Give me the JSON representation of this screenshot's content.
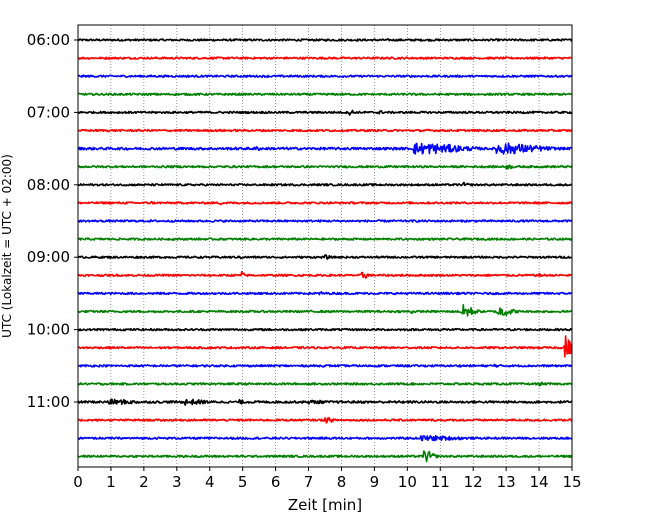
{
  "chart_data": {
    "type": "line",
    "subtype": "helicorder",
    "xlabel": "Zeit  [min]",
    "ylabel": "UTC (Lokalzeit = UTC + 02:00)",
    "xlim": [
      0,
      15
    ],
    "xticks": [
      "0",
      "1",
      "2",
      "3",
      "4",
      "5",
      "6",
      "7",
      "8",
      "9",
      "10",
      "11",
      "12",
      "13",
      "14",
      "15"
    ],
    "yticks": [
      "06:00",
      "07:00",
      "08:00",
      "09:00",
      "10:00",
      "11:00"
    ],
    "grid": "vertical-dotted",
    "trace_colors": [
      "#000000",
      "#ff0000",
      "#0000ff",
      "#008000"
    ],
    "traces": [
      {
        "start": "06:00",
        "color": "#000000",
        "amplitude": 0.12,
        "events": []
      },
      {
        "start": "06:15",
        "color": "#ff0000",
        "amplitude": 0.12,
        "events": []
      },
      {
        "start": "06:30",
        "color": "#0000ff",
        "amplitude": 0.12,
        "events": []
      },
      {
        "start": "06:45",
        "color": "#008000",
        "amplitude": 0.12,
        "events": []
      },
      {
        "start": "07:00",
        "color": "#000000",
        "amplitude": 0.12,
        "events": [
          {
            "t": 8.25,
            "amp": 0.5,
            "dur": 0.15
          },
          {
            "t": 9.15,
            "amp": 0.35,
            "dur": 0.1
          }
        ]
      },
      {
        "start": "07:15",
        "color": "#ff0000",
        "amplitude": 0.12,
        "events": []
      },
      {
        "start": "07:30",
        "color": "#0000ff",
        "amplitude": 0.15,
        "events": [
          {
            "t": 10.2,
            "amp": 0.75,
            "dur": 1.8
          },
          {
            "t": 12.7,
            "amp": 0.75,
            "dur": 1.6
          },
          {
            "t": 5.4,
            "amp": 0.3,
            "dur": 0.2
          }
        ]
      },
      {
        "start": "07:45",
        "color": "#008000",
        "amplitude": 0.12,
        "events": [
          {
            "t": 13.0,
            "amp": 0.3,
            "dur": 0.3
          }
        ]
      },
      {
        "start": "08:00",
        "color": "#000000",
        "amplitude": 0.12,
        "events": [
          {
            "t": 11.7,
            "amp": 0.3,
            "dur": 0.2
          }
        ]
      },
      {
        "start": "08:15",
        "color": "#ff0000",
        "amplitude": 0.12,
        "events": [
          {
            "t": 2.2,
            "amp": 0.25,
            "dur": 0.1
          },
          {
            "t": 4.3,
            "amp": 0.25,
            "dur": 0.1
          }
        ]
      },
      {
        "start": "08:30",
        "color": "#0000ff",
        "amplitude": 0.12,
        "events": []
      },
      {
        "start": "08:45",
        "color": "#008000",
        "amplitude": 0.12,
        "events": []
      },
      {
        "start": "09:00",
        "color": "#000000",
        "amplitude": 0.12,
        "events": [
          {
            "t": 4.9,
            "amp": 0.3,
            "dur": 0.1
          },
          {
            "t": 7.5,
            "amp": 0.3,
            "dur": 0.2
          }
        ]
      },
      {
        "start": "09:15",
        "color": "#ff0000",
        "amplitude": 0.12,
        "events": [
          {
            "t": 4.95,
            "amp": 0.55,
            "dur": 0.12
          },
          {
            "t": 8.6,
            "amp": 0.5,
            "dur": 0.3
          },
          {
            "t": 14.0,
            "amp": 0.3,
            "dur": 0.1
          }
        ]
      },
      {
        "start": "09:30",
        "color": "#0000ff",
        "amplitude": 0.12,
        "events": [
          {
            "t": 7.3,
            "amp": 0.25,
            "dur": 0.3
          }
        ]
      },
      {
        "start": "09:45",
        "color": "#008000",
        "amplitude": 0.12,
        "events": [
          {
            "t": 10.1,
            "amp": 0.35,
            "dur": 0.1
          },
          {
            "t": 11.6,
            "amp": 0.9,
            "dur": 0.5
          },
          {
            "t": 12.7,
            "amp": 0.7,
            "dur": 0.6
          }
        ]
      },
      {
        "start": "10:00",
        "color": "#000000",
        "amplitude": 0.12,
        "events": [
          {
            "t": 11.0,
            "amp": 0.25,
            "dur": 0.2
          }
        ]
      },
      {
        "start": "10:15",
        "color": "#ff0000",
        "amplitude": 0.12,
        "events": [
          {
            "t": 14.75,
            "amp": 1.7,
            "dur": 0.25
          }
        ]
      },
      {
        "start": "10:30",
        "color": "#0000ff",
        "amplitude": 0.12,
        "events": [
          {
            "t": 12.6,
            "amp": 0.3,
            "dur": 0.15
          }
        ]
      },
      {
        "start": "10:45",
        "color": "#008000",
        "amplitude": 0.12,
        "events": [
          {
            "t": 14.0,
            "amp": 0.25,
            "dur": 0.2
          }
        ]
      },
      {
        "start": "11:00",
        "color": "#000000",
        "amplitude": 0.14,
        "events": [
          {
            "t": 0.9,
            "amp": 0.35,
            "dur": 1.2
          },
          {
            "t": 3.2,
            "amp": 0.4,
            "dur": 0.9
          },
          {
            "t": 4.9,
            "amp": 0.3,
            "dur": 0.2
          },
          {
            "t": 7.0,
            "amp": 0.25,
            "dur": 0.8
          }
        ]
      },
      {
        "start": "11:15",
        "color": "#ff0000",
        "amplitude": 0.12,
        "events": [
          {
            "t": 7.5,
            "amp": 0.4,
            "dur": 0.3
          }
        ]
      },
      {
        "start": "11:30",
        "color": "#0000ff",
        "amplitude": 0.12,
        "events": [
          {
            "t": 10.4,
            "amp": 0.35,
            "dur": 1.6
          }
        ]
      },
      {
        "start": "11:45",
        "color": "#008000",
        "amplitude": 0.12,
        "events": [
          {
            "t": 10.5,
            "amp": 0.8,
            "dur": 0.35
          }
        ]
      }
    ]
  }
}
